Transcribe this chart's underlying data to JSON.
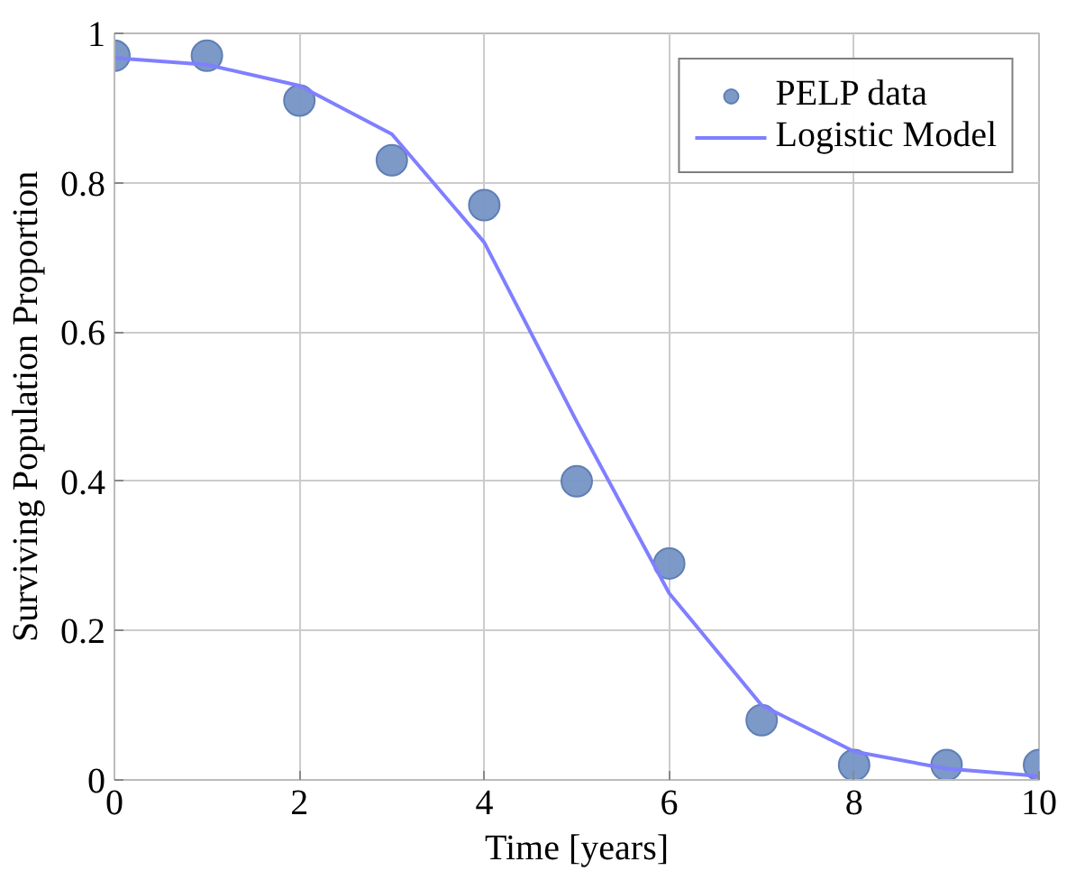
{
  "chart_data": {
    "type": "line",
    "xlabel": "Time [years]",
    "ylabel": "Surviving Population Proportion",
    "xlim": [
      0,
      10
    ],
    "ylim": [
      0,
      1
    ],
    "xticks": [
      0,
      2,
      4,
      6,
      8,
      10
    ],
    "yticks": [
      0,
      0.2,
      0.4,
      0.6,
      0.8,
      1
    ],
    "grid": true,
    "legend": "top right",
    "series": [
      {
        "name": "PELP data",
        "type": "scatter",
        "marker": "circle",
        "color": "#7594c4",
        "x": [
          0,
          1,
          2,
          3,
          4,
          5,
          6,
          7,
          8,
          9,
          10
        ],
        "values": [
          0.97,
          0.97,
          0.91,
          0.83,
          0.77,
          0.4,
          0.29,
          0.08,
          0.02,
          0.02,
          0.02
        ]
      },
      {
        "name": "Logistic Model",
        "color": "#7f7fff",
        "x": [
          0,
          1,
          2,
          3,
          4,
          5,
          6,
          7,
          8,
          9,
          10
        ],
        "values": [
          0.967,
          0.958,
          0.93,
          0.865,
          0.72,
          0.48,
          0.25,
          0.1,
          0.038,
          0.015,
          0.005
        ]
      }
    ]
  }
}
